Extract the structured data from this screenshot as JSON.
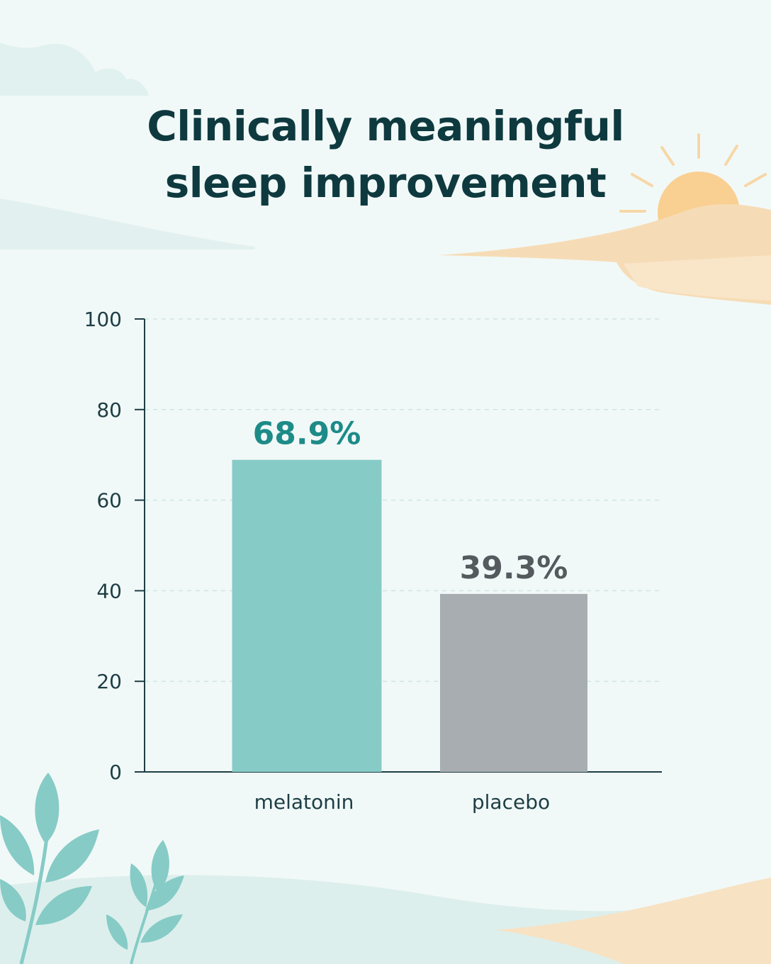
{
  "title_lines": [
    "Clinically meaningful",
    "sleep improvement"
  ],
  "colors": {
    "background": "#f1f9f8",
    "title": "#0e3a3f",
    "axis": "#1d3e44",
    "melatonin": "#87cbc7",
    "melatonin_label": "#1d8b88",
    "placebo": "#a8adb1",
    "placebo_label": "#555a5e",
    "sun": "#f9cf92"
  },
  "chart_data": {
    "type": "bar",
    "title": "Clinically meaningful sleep improvement",
    "categories": [
      "melatonin",
      "placebo"
    ],
    "values": [
      68.9,
      39.3
    ],
    "value_labels": [
      "68.9%",
      "39.3%"
    ],
    "ylim": [
      0,
      100
    ],
    "yticks": [
      0,
      20,
      40,
      60,
      80,
      100
    ],
    "xlabel": "",
    "ylabel": "",
    "grid": true,
    "legend": "none"
  }
}
